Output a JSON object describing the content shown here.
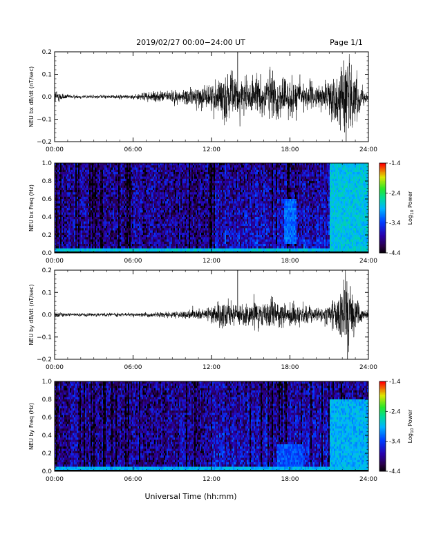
{
  "header": {
    "title": "2019/02/27  00:00−24:00 UT",
    "page": "Page 1/1"
  },
  "footer": {
    "xlabel": "Universal Time (hh:mm)"
  },
  "colorbar": {
    "ticks": [
      "-1.4",
      "-2.4",
      "-3.4",
      "-4.4"
    ],
    "label_main": "Log",
    "label_sub": "10",
    "label_rest": " Power"
  },
  "chart_data": [
    {
      "type": "line",
      "title": "",
      "ylabel": "NEU bx dB/dt (nT/sec)",
      "xlabel": "",
      "x_range": [
        "00:00",
        "24:00"
      ],
      "x_ticks": [
        "00:00",
        "06:00",
        "12:00",
        "18:00",
        "24:00"
      ],
      "ylim": [
        -0.2,
        0.2
      ],
      "y_ticks": [
        "0.2",
        "0.1",
        "0.0",
        "−0.1",
        "−0.2"
      ],
      "amplitude_envelope": {
        "hours": [
          0,
          0.3,
          1,
          3,
          6,
          7,
          8,
          9,
          10,
          11,
          12,
          12.5,
          13,
          13.5,
          14,
          15,
          16,
          16.5,
          17,
          17.5,
          18,
          19,
          20,
          20.5,
          21,
          21.5,
          22,
          22.5,
          23,
          23.5,
          24
        ],
        "nT_per_sec": [
          0.03,
          0.025,
          0.01,
          0.008,
          0.01,
          0.02,
          0.025,
          0.03,
          0.035,
          0.05,
          0.06,
          0.1,
          0.12,
          0.1,
          0.09,
          0.08,
          0.1,
          0.12,
          0.1,
          0.09,
          0.1,
          0.08,
          0.05,
          0.06,
          0.08,
          0.12,
          0.17,
          0.2,
          0.12,
          0.04,
          0.02
        ]
      },
      "spikes": [
        {
          "hour": 14.0,
          "value": 0.2
        },
        {
          "hour": 22.3,
          "value": -0.2
        }
      ]
    },
    {
      "type": "heatmap",
      "ylabel": "NEU bx Freq (Hz)",
      "x_range": [
        "00:00",
        "24:00"
      ],
      "x_ticks": [
        "00:00",
        "06:00",
        "12:00",
        "18:00",
        "24:00"
      ],
      "ylim": [
        0.0,
        1.0
      ],
      "y_ticks": [
        "1.0",
        "0.8",
        "0.6",
        "0.4",
        "0.2",
        "0.0"
      ],
      "color_range": [
        -4.4,
        -1.4
      ],
      "colorbar_label": "Log10 Power",
      "features": [
        {
          "hours": [
            0,
            24
          ],
          "freq_hz": [
            0,
            0.05
          ],
          "log10_power": -2.6
        },
        {
          "hours": [
            17.5,
            18.5
          ],
          "freq_hz": [
            0.1,
            0.6
          ],
          "log10_power": -3.0
        },
        {
          "hours": [
            21,
            24
          ],
          "freq_hz": [
            0,
            1.0
          ],
          "log10_power": -2.6
        }
      ]
    },
    {
      "type": "line",
      "ylabel": "NEU by dB/dt (nT/sec)",
      "x_range": [
        "00:00",
        "24:00"
      ],
      "x_ticks": [
        "00:00",
        "06:00",
        "12:00",
        "18:00",
        "24:00"
      ],
      "ylim": [
        -0.2,
        0.2
      ],
      "y_ticks": [
        "0.2",
        "0.1",
        "0.0",
        "−0.1",
        "−0.2"
      ],
      "amplitude_envelope": {
        "hours": [
          0,
          0.3,
          1,
          3,
          6,
          7,
          8,
          9,
          10,
          11,
          12,
          12.5,
          13,
          13.5,
          14,
          15,
          16,
          16.5,
          17,
          17.5,
          18,
          19,
          20,
          20.5,
          21,
          21.5,
          22,
          22.5,
          23,
          23.5,
          24
        ],
        "nT_per_sec": [
          0.015,
          0.012,
          0.008,
          0.008,
          0.008,
          0.01,
          0.012,
          0.015,
          0.02,
          0.025,
          0.03,
          0.06,
          0.07,
          0.06,
          0.05,
          0.06,
          0.07,
          0.08,
          0.07,
          0.05,
          0.06,
          0.05,
          0.03,
          0.04,
          0.05,
          0.08,
          0.12,
          0.17,
          0.1,
          0.03,
          0.015
        ]
      },
      "spikes": [
        {
          "hour": 14.0,
          "value": 0.2
        },
        {
          "hour": 22.4,
          "value": -0.2
        }
      ]
    },
    {
      "type": "heatmap",
      "ylabel": "NEU by Freq (Hz)",
      "x_range": [
        "00:00",
        "24:00"
      ],
      "x_ticks": [
        "00:00",
        "06:00",
        "12:00",
        "18:00",
        "24:00"
      ],
      "ylim": [
        0.0,
        1.0
      ],
      "y_ticks": [
        "1.0",
        "0.8",
        "0.6",
        "0.4",
        "0.2",
        "0.0"
      ],
      "color_range": [
        -4.4,
        -1.4
      ],
      "colorbar_label": "Log10 Power",
      "features": [
        {
          "hours": [
            0,
            24
          ],
          "freq_hz": [
            0,
            0.05
          ],
          "log10_power": -2.7
        },
        {
          "hours": [
            17,
            19
          ],
          "freq_hz": [
            0.05,
            0.3
          ],
          "log10_power": -3.1
        },
        {
          "hours": [
            21,
            24
          ],
          "freq_hz": [
            0,
            0.8
          ],
          "log10_power": -2.7
        }
      ]
    }
  ]
}
